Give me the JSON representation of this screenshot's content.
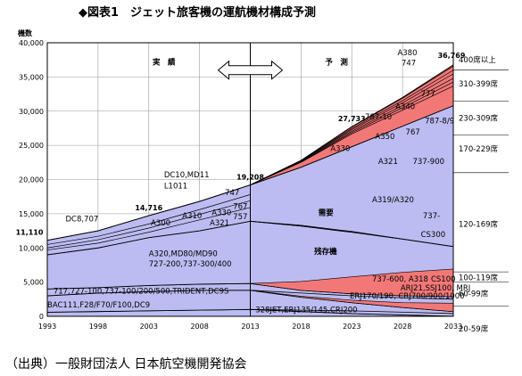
{
  "title": "◆図表1　ジェット旅客機の運航機材構成予測",
  "source": "（出典）一般財団法人 日本航空機開発協会",
  "chart_data": {
    "type": "area",
    "title": "ジェット旅客機の運航機材構成予測",
    "ylabel": "機数",
    "ylim": [
      0,
      40000
    ],
    "yticks": [
      0,
      5000,
      10000,
      15000,
      20000,
      25000,
      30000,
      35000,
      40000
    ],
    "ytick_labels": [
      "0",
      "5,000",
      "10,000",
      "15,000",
      "20,000",
      "25,000",
      "30,000",
      "35,000",
      "40,000"
    ],
    "xlim": [
      1993,
      2033
    ],
    "xticks": [
      1993,
      1998,
      2003,
      2008,
      2013,
      2018,
      2023,
      2028,
      2033
    ],
    "grid": true,
    "period_labels": {
      "actual": "実　績",
      "forecast": "予　測"
    },
    "boundary_year": 2013,
    "totals": [
      {
        "year": 1993,
        "value": 11110,
        "label": "11,110"
      },
      {
        "year": 2003,
        "value": 14716,
        "label": "14,716"
      },
      {
        "year": 2013,
        "value": 19208,
        "label": "19,208"
      },
      {
        "year": 2023,
        "value": 27733,
        "label": "27,733"
      },
      {
        "year": 2033,
        "value": 36769,
        "label": "36,769"
      }
    ],
    "boundaries_x": [
      1993,
      1998,
      2003,
      2008,
      2013,
      2018,
      2023,
      2028,
      2033
    ],
    "cumulative_boundaries": [
      [
        600,
        700,
        800,
        900,
        1000,
        700,
        400,
        200,
        0
      ],
      [
        3000,
        3400,
        3600,
        3800,
        3800,
        2800,
        2000,
        1300,
        700
      ],
      [
        4000,
        4200,
        4500,
        4700,
        4800,
        3800,
        3300,
        3000,
        2900
      ],
      [
        9000,
        10000,
        11500,
        12500,
        13900,
        13200,
        12300,
        11300,
        10200
      ],
      [
        11110,
        12500,
        14716,
        16800,
        19208,
        21800,
        24800,
        27800,
        30800
      ],
      [
        11110,
        12500,
        14716,
        16800,
        19208,
        22800,
        27733,
        32000,
        36769
      ]
    ],
    "series": [
      {
        "name": "BAC111,F28/F70/F100,DC9",
        "color": "#bcbcf2"
      },
      {
        "name": "717,727-100,737-100/200/500,TRIDENT,DC9S",
        "color": "#bcbcf2"
      },
      {
        "name": "328JET,ERJ135/145,CRJ200",
        "color": "#bcbcf2"
      },
      {
        "name": "A320,MD80/MD90 727-200,737-300/400",
        "color": "#bcbcf2"
      },
      {
        "name": "残存機",
        "color": "#bcbcf2"
      },
      {
        "name": "需要",
        "color": "#f27878"
      }
    ],
    "seat_classes": [
      "400席以上",
      "310-399席",
      "230-309席",
      "170-229席",
      "120-169席",
      "100-119席",
      "60-99席",
      "20-59席"
    ],
    "annotations": [
      {
        "text": "DC8,707",
        "x": 1994.8,
        "y": 13900
      },
      {
        "text": "DC10,MD11",
        "x": 2004.5,
        "y": 20300
      },
      {
        "text": "L1011",
        "x": 2004.5,
        "y": 18700
      },
      {
        "text": "747",
        "x": 2010.5,
        "y": 17700
      },
      {
        "text": "A310",
        "x": 2006.3,
        "y": 14300
      },
      {
        "text": "A300",
        "x": 2003.2,
        "y": 13300
      },
      {
        "text": "A330",
        "x": 2009.2,
        "y": 14800
      },
      {
        "text": "A321",
        "x": 2009.0,
        "y": 13300
      },
      {
        "text": "767",
        "x": 2011.3,
        "y": 15700
      },
      {
        "text": "757",
        "x": 2011.3,
        "y": 14200
      },
      {
        "text": "A380",
        "x": 2027.5,
        "y": 38200
      },
      {
        "text": "747",
        "x": 2027.9,
        "y": 36700
      },
      {
        "text": "777",
        "x": 2029.8,
        "y": 32200
      },
      {
        "text": "A340",
        "x": 2027.3,
        "y": 30300
      },
      {
        "text": "787-10",
        "x": 2024.3,
        "y": 28800
      },
      {
        "text": "787-8/9",
        "x": 2030.2,
        "y": 28200
      },
      {
        "text": "A350",
        "x": 2025.3,
        "y": 25900
      },
      {
        "text": "767",
        "x": 2028.3,
        "y": 26600
      },
      {
        "text": "A330",
        "x": 2020.9,
        "y": 24200
      },
      {
        "text": "A321",
        "x": 2025.6,
        "y": 22300
      },
      {
        "text": "737-900",
        "x": 2029.0,
        "y": 22300
      },
      {
        "text": "A319/A320",
        "x": 2025.0,
        "y": 16700
      },
      {
        "text": "737-",
        "x": 2030.0,
        "y": 14300
      },
      {
        "text": "CS300",
        "x": 2029.8,
        "y": 11600
      },
      {
        "text": "需要",
        "x": 2019.7,
        "y": 14800
      },
      {
        "text": "残存機",
        "x": 2019.3,
        "y": 9100
      },
      {
        "text": "A320,MD80/MD90",
        "x": 2003.0,
        "y": 8800
      },
      {
        "text": "727-200,737-300/400",
        "x": 2003.0,
        "y": 7300
      },
      {
        "text": "737-600, A318",
        "x": 2025.0,
        "y": 5100
      },
      {
        "text": "CS100",
        "x": 2030.8,
        "y": 5100
      },
      {
        "text": "ARJ21,SSJ100, MRJ",
        "x": 2027.8,
        "y": 3800
      },
      {
        "text": "717,727-100,737-100/200/500,TRIDENT,DC9S",
        "x": 1993.6,
        "y": 3300
      },
      {
        "text": "ERJ170/190, CRJ700/900/1000",
        "x": 2022.8,
        "y": 2600
      },
      {
        "text": "BAC111,F28/F70/F100,DC9",
        "x": 1993.0,
        "y": 1300
      },
      {
        "text": "328JET,ERJ135/145,CRJ200",
        "x": 2013.5,
        "y": 600
      }
    ]
  }
}
